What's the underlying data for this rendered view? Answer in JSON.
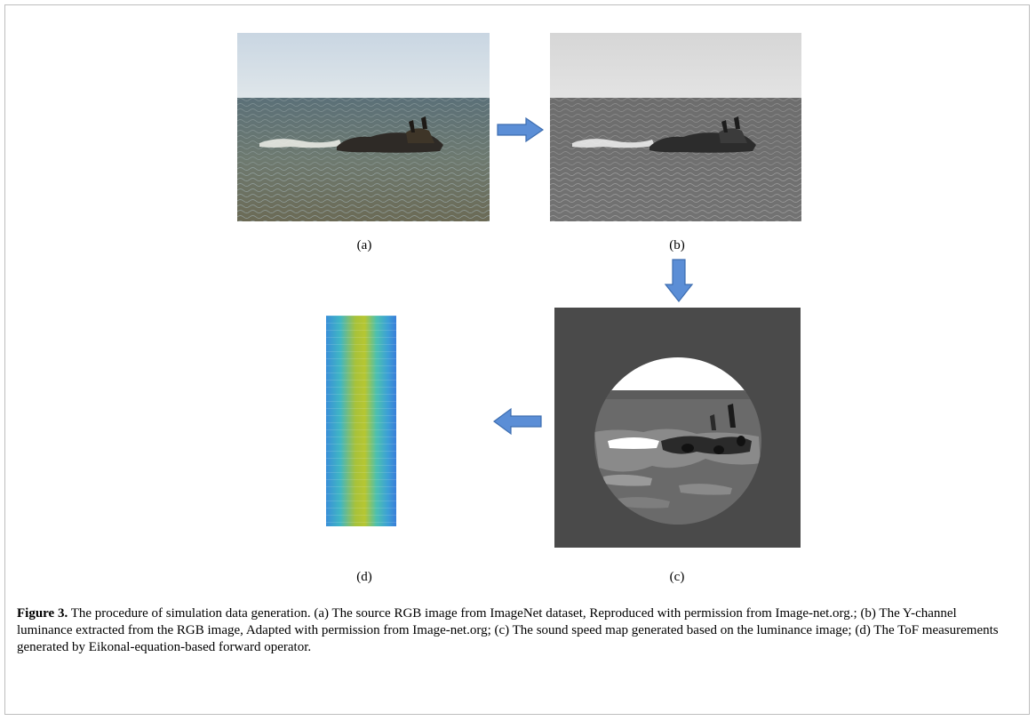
{
  "panels": {
    "a": {
      "label": "(a)"
    },
    "b": {
      "label": "(b)"
    },
    "c": {
      "label": "(c)"
    },
    "d": {
      "label": "(d)"
    }
  },
  "caption": {
    "figure_number": "Figure 3.",
    "text": " The procedure of simulation data generation. (a) The source RGB image from ImageNet dataset, Reproduced with permission from Image-net.org.; (b) The Y-channel luminance extracted from the RGB image,  Adapted with permission from Image-net.org; (c) The sound speed map generated based on the luminance image; (d) The ToF measurements generated by Eikonal-equation-based forward operator."
  },
  "colors": {
    "arrow_fill": "#5b8ed6",
    "arrow_stroke": "#3d6db0",
    "sky_color": "#d3dde6",
    "sea_color": "#5a6a70",
    "map_background": "#4a4a4a",
    "tof_center": "#b6c632",
    "tof_edge": "#3a8fd8"
  }
}
